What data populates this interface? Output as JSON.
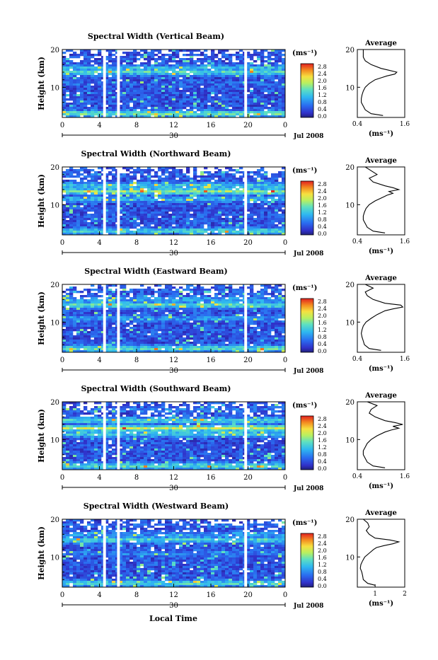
{
  "figure": {
    "colorbar_unit": "(ms⁻¹)",
    "profile_xlabel": "(ms⁻¹)",
    "profile_title": "Average",
    "ylabel": "Height (km)",
    "xlabel": "Local Time",
    "date_label": "Jul 2008",
    "day_label": "30"
  },
  "chart_data": [
    {
      "type": "heatmap",
      "title": "Spectral Width (Vertical Beam)",
      "ylim": [
        2,
        20
      ],
      "y_ticks": [
        "20",
        "10"
      ],
      "xlim": [
        0,
        24
      ],
      "x_ticks": [
        "0",
        "4",
        "8",
        "12",
        "16",
        "20",
        "0"
      ],
      "data_gaps_hours": [
        [
          4.4,
          4.7
        ],
        [
          5.9,
          6.2
        ],
        [
          19.6,
          19.9
        ]
      ],
      "colorbar": {
        "min": 0.0,
        "max": 2.8,
        "ticks": [
          "2.8",
          "2.4",
          "2.0",
          "1.6",
          "1.2",
          "0.8",
          "0.4",
          "0.0"
        ]
      },
      "bands": [
        {
          "height_km": 3.0,
          "width": 1.6
        },
        {
          "height_km": 7.0,
          "width": 0.45
        },
        {
          "height_km": 11.0,
          "width": 0.6
        },
        {
          "height_km": 14.0,
          "width": 1.4
        },
        {
          "height_km": 15.0,
          "width": 1.2
        },
        {
          "height_km": 18.0,
          "width": 0.5
        }
      ],
      "profile": {
        "xlim": [
          0.4,
          1.6
        ],
        "x_ticks": [
          "0.4",
          "1.6"
        ],
        "y_ticks": [
          "20",
          "10"
        ],
        "heights": [
          2.5,
          3,
          4,
          5,
          6,
          7,
          8,
          9,
          10,
          11,
          12,
          12.5,
          13,
          13.5,
          14,
          14.5,
          15,
          16,
          17,
          18,
          19,
          20
        ],
        "values": [
          1.05,
          0.75,
          0.6,
          0.55,
          0.5,
          0.5,
          0.52,
          0.55,
          0.6,
          0.7,
          0.85,
          1.0,
          1.15,
          1.35,
          1.4,
          1.2,
          1.0,
          0.75,
          0.6,
          0.55,
          0.55,
          0.55
        ]
      }
    },
    {
      "type": "heatmap",
      "title": "Spectral Width (Northward Beam)",
      "ylim": [
        2,
        20
      ],
      "y_ticks": [
        "20",
        "10"
      ],
      "xlim": [
        0,
        24
      ],
      "x_ticks": [
        "0",
        "4",
        "8",
        "12",
        "16",
        "20",
        "0"
      ],
      "data_gaps_hours": [
        [
          4.4,
          4.7
        ],
        [
          5.9,
          6.2
        ],
        [
          19.6,
          19.9
        ]
      ],
      "colorbar": {
        "min": 0.0,
        "max": 2.8,
        "ticks": [
          "2.8",
          "2.4",
          "2.0",
          "1.6",
          "1.2",
          "0.8",
          "0.4",
          "0.0"
        ]
      },
      "bands": [
        {
          "height_km": 3.0,
          "width": 1.4
        },
        {
          "height_km": 7.0,
          "width": 0.5
        },
        {
          "height_km": 11.5,
          "width": 1.1
        },
        {
          "height_km": 13.5,
          "width": 1.7
        },
        {
          "height_km": 15.0,
          "width": 1.3
        },
        {
          "height_km": 18.0,
          "width": 0.6
        }
      ],
      "profile": {
        "xlim": [
          0.4,
          1.6
        ],
        "x_ticks": [
          "0.4",
          "1.6"
        ],
        "y_ticks": [
          "20",
          "10"
        ],
        "heights": [
          2.5,
          3,
          4,
          5,
          6,
          7,
          8,
          9,
          10,
          11,
          12,
          12.5,
          13,
          13.5,
          14,
          14.5,
          15,
          16,
          17,
          18,
          19,
          20
        ],
        "values": [
          1.1,
          0.8,
          0.65,
          0.6,
          0.55,
          0.55,
          0.58,
          0.62,
          0.7,
          0.85,
          1.05,
          1.15,
          1.3,
          1.2,
          1.45,
          1.3,
          1.1,
          0.8,
          0.7,
          0.9,
          0.75,
          0.6
        ]
      }
    },
    {
      "type": "heatmap",
      "title": "Spectral Width (Eastward Beam)",
      "ylim": [
        2,
        20
      ],
      "y_ticks": [
        "20",
        "10"
      ],
      "xlim": [
        0,
        24
      ],
      "x_ticks": [
        "0",
        "4",
        "8",
        "12",
        "16",
        "20",
        "0"
      ],
      "data_gaps_hours": [
        [
          4.4,
          4.7
        ],
        [
          5.9,
          6.2
        ],
        [
          19.6,
          19.9
        ]
      ],
      "colorbar": {
        "min": 0.0,
        "max": 2.8,
        "ticks": [
          "2.8",
          "2.4",
          "2.0",
          "1.6",
          "1.2",
          "0.8",
          "0.4",
          "0.0"
        ]
      },
      "bands": [
        {
          "height_km": 3.0,
          "width": 1.5
        },
        {
          "height_km": 7.0,
          "width": 0.5
        },
        {
          "height_km": 11.0,
          "width": 0.9
        },
        {
          "height_km": 14.5,
          "width": 1.5
        },
        {
          "height_km": 16.0,
          "width": 1.0
        },
        {
          "height_km": 18.5,
          "width": 0.55
        }
      ],
      "profile": {
        "xlim": [
          0.4,
          1.6
        ],
        "x_ticks": [
          "0.4",
          "1.6"
        ],
        "y_ticks": [
          "20",
          "10"
        ],
        "heights": [
          2.5,
          3,
          4,
          5,
          6,
          7,
          8,
          9,
          10,
          11,
          12,
          12.5,
          13,
          13.5,
          14,
          14.5,
          15,
          16,
          17,
          18,
          19,
          20
        ],
        "values": [
          1.0,
          0.7,
          0.58,
          0.55,
          0.52,
          0.5,
          0.52,
          0.55,
          0.62,
          0.75,
          0.9,
          1.0,
          1.1,
          1.3,
          1.55,
          1.5,
          1.1,
          0.8,
          0.65,
          0.6,
          0.8,
          0.6
        ]
      }
    },
    {
      "type": "heatmap",
      "title": "Spectral Width (Southward Beam)",
      "ylim": [
        2,
        20
      ],
      "y_ticks": [
        "20",
        "10"
      ],
      "xlim": [
        0,
        24
      ],
      "x_ticks": [
        "0",
        "4",
        "8",
        "12",
        "16",
        "20",
        "0"
      ],
      "data_gaps_hours": [
        [
          4.4,
          4.7
        ],
        [
          5.9,
          6.2
        ],
        [
          19.6,
          19.9
        ]
      ],
      "colorbar": {
        "min": 0.0,
        "max": 2.8,
        "ticks": [
          "2.8",
          "2.4",
          "2.0",
          "1.6",
          "1.2",
          "0.8",
          "0.4",
          "0.0"
        ]
      },
      "bands": [
        {
          "height_km": 3.0,
          "width": 1.5
        },
        {
          "height_km": 7.0,
          "width": 0.5
        },
        {
          "height_km": 11.5,
          "width": 1.3
        },
        {
          "height_km": 13.0,
          "width": 1.9
        },
        {
          "height_km": 15.0,
          "width": 1.4
        },
        {
          "height_km": 18.0,
          "width": 0.7
        }
      ],
      "profile": {
        "xlim": [
          0.4,
          1.6
        ],
        "x_ticks": [
          "0.4",
          "1.6"
        ],
        "y_ticks": [
          "20",
          "10"
        ],
        "heights": [
          2.5,
          3,
          4,
          5,
          6,
          7,
          8,
          9,
          10,
          11,
          12,
          12.5,
          13,
          13.5,
          14,
          14.5,
          15,
          16,
          17,
          18,
          19,
          20
        ],
        "values": [
          1.1,
          0.8,
          0.65,
          0.6,
          0.55,
          0.55,
          0.6,
          0.65,
          0.75,
          0.9,
          1.1,
          1.25,
          1.45,
          1.3,
          1.55,
          1.35,
          1.1,
          0.85,
          0.7,
          0.75,
          0.9,
          0.65
        ]
      }
    },
    {
      "type": "heatmap",
      "title": "Spectral Width (Westward Beam)",
      "ylim": [
        2,
        20
      ],
      "y_ticks": [
        "20",
        "10"
      ],
      "xlim": [
        0,
        24
      ],
      "x_ticks": [
        "0",
        "4",
        "8",
        "12",
        "16",
        "20",
        "0"
      ],
      "data_gaps_hours": [
        [
          4.4,
          4.7
        ],
        [
          5.9,
          6.2
        ],
        [
          19.6,
          19.9
        ]
      ],
      "colorbar": {
        "min": 0.0,
        "max": 2.8,
        "ticks": [
          "2.8",
          "2.4",
          "2.0",
          "1.6",
          "1.2",
          "0.8",
          "0.4",
          "0.0"
        ]
      },
      "bands": [
        {
          "height_km": 3.0,
          "width": 1.4
        },
        {
          "height_km": 7.0,
          "width": 0.5
        },
        {
          "height_km": 11.0,
          "width": 0.8
        },
        {
          "height_km": 14.5,
          "width": 1.4
        },
        {
          "height_km": 16.0,
          "width": 0.9
        },
        {
          "height_km": 18.5,
          "width": 0.6
        }
      ],
      "profile": {
        "xlim": [
          0.4,
          2.0
        ],
        "x_ticks": [
          "1",
          "2"
        ],
        "y_ticks": [
          "20",
          "10"
        ],
        "heights": [
          2.5,
          3,
          4,
          5,
          6,
          7,
          8,
          9,
          10,
          11,
          12,
          12.5,
          13,
          13.5,
          14,
          14.5,
          15,
          16,
          17,
          18,
          19,
          20
        ],
        "values": [
          1.0,
          0.75,
          0.6,
          0.58,
          0.55,
          0.5,
          0.52,
          0.58,
          0.65,
          0.8,
          0.95,
          1.05,
          1.3,
          1.6,
          1.8,
          1.5,
          1.0,
          0.8,
          0.7,
          0.8,
          0.75,
          0.6
        ]
      }
    }
  ]
}
